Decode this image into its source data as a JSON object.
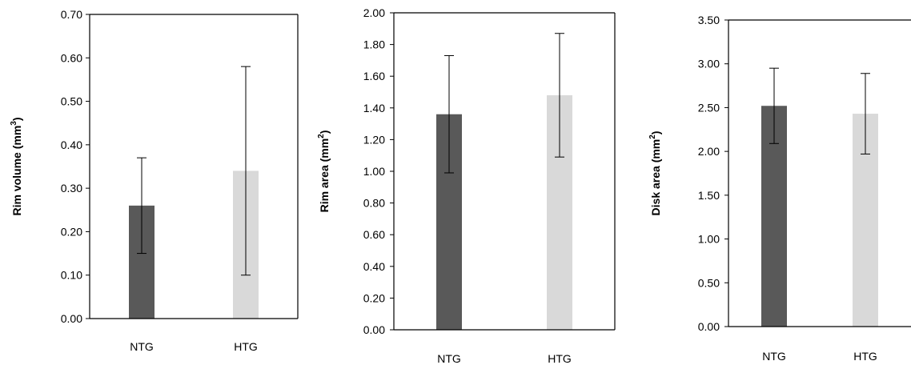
{
  "colors": {
    "ntg": "#595959",
    "htg": "#d9d9d9",
    "axis": "#000000",
    "error_bar": "#000000"
  },
  "chart_data": [
    {
      "type": "bar",
      "categories": [
        "NTG",
        "HTG"
      ],
      "values": [
        0.26,
        0.34
      ],
      "errors": [
        0.11,
        0.24
      ],
      "ylabel": "Rim volume (mm³)",
      "ylabel_parts": [
        "Rim volume (mm",
        "3",
        ")"
      ],
      "ylim": [
        0,
        0.7
      ],
      "ytick_step": 0.1,
      "ytick_labels": [
        "0.00",
        "0.10",
        "0.20",
        "0.30",
        "0.40",
        "0.50",
        "0.60",
        "0.70"
      ],
      "box": "full",
      "grid": false
    },
    {
      "type": "bar",
      "categories": [
        "NTG",
        "HTG"
      ],
      "values": [
        1.36,
        1.48
      ],
      "errors": [
        0.37,
        0.39
      ],
      "ylabel": "Rim area (mm²)",
      "ylabel_parts": [
        "Rim area (mm",
        "2",
        ")"
      ],
      "ylim": [
        0,
        2.0
      ],
      "ytick_step": 0.2,
      "ytick_labels": [
        "0.00",
        "0.20",
        "0.40",
        "0.60",
        "0.80",
        "1.00",
        "1.20",
        "1.40",
        "1.60",
        "1.80",
        "2.00"
      ],
      "box": "full",
      "grid": false
    },
    {
      "type": "bar",
      "categories": [
        "NTG",
        "HTG"
      ],
      "values": [
        2.52,
        2.43
      ],
      "errors": [
        0.43,
        0.46
      ],
      "ylabel": "Disk area (mm²)",
      "ylabel_parts": [
        "Disk area (mm",
        "2",
        ")"
      ],
      "ylim": [
        0,
        3.5
      ],
      "ytick_step": 0.5,
      "ytick_labels": [
        "0.00",
        "0.50",
        "1.00",
        "1.50",
        "2.00",
        "2.50",
        "3.00",
        "3.50"
      ],
      "box": "top-left-bottom",
      "grid": false
    }
  ]
}
